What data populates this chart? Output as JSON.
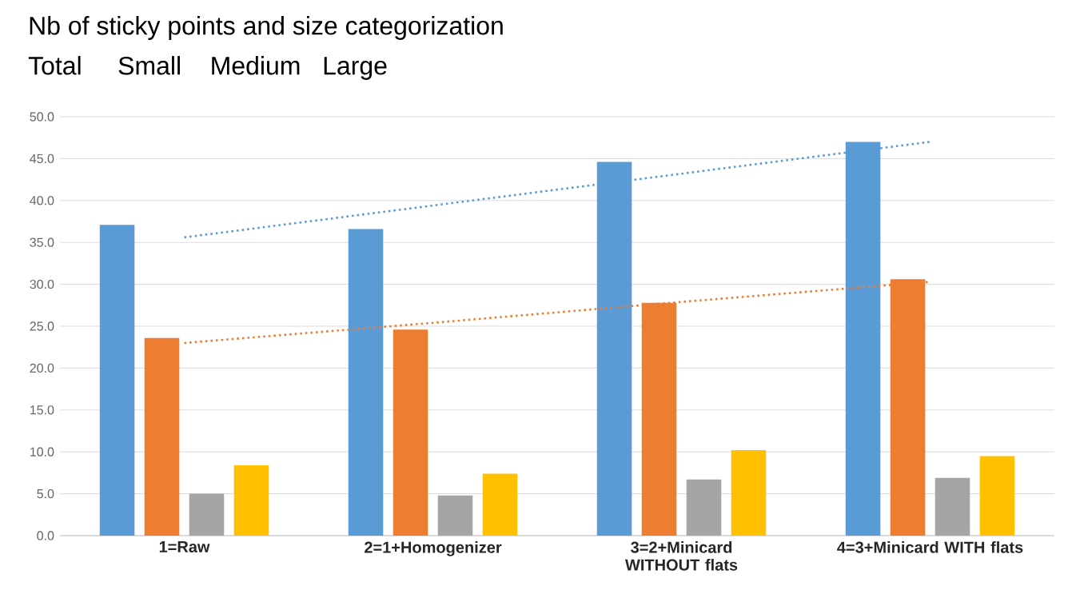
{
  "chart_data": {
    "type": "bar",
    "title": "Nb of sticky points and size categorization",
    "subtitle": "Total     Small    Medium   Large",
    "categories": [
      "1=Raw",
      "2=1+Homogenizer",
      "3=2+Minicard WITHOUT flats",
      "4=3+Minicard WITH flats"
    ],
    "series": [
      {
        "color": "#5b9bd5",
        "values": [
          37.1,
          36.6,
          44.6,
          47.0
        ]
      },
      {
        "color": "#ed7d31",
        "values": [
          23.6,
          24.6,
          27.8,
          30.6
        ]
      },
      {
        "color": "#a5a5a5",
        "values": [
          5.0,
          4.8,
          6.7,
          6.9
        ]
      },
      {
        "color": "#ffc000",
        "values": [
          8.4,
          7.4,
          10.2,
          9.5
        ]
      },
      {
        "type": "line",
        "line_style": "dotted",
        "color": "#5b9bd5",
        "values": [
          35.6,
          39.4,
          43.2,
          47.0
        ]
      },
      {
        "type": "line",
        "line_style": "dotted",
        "color": "#ed7d31",
        "values": [
          23.0,
          25.4,
          27.9,
          30.3
        ]
      }
    ],
    "ylim": [
      0,
      50
    ],
    "yticks": [
      {
        "value": 0,
        "label": "0.0"
      },
      {
        "value": 5,
        "label": "5.0"
      },
      {
        "value": 10,
        "label": "10.0"
      },
      {
        "value": 15,
        "label": "15.0"
      },
      {
        "value": 20,
        "label": "20.0"
      },
      {
        "value": 25,
        "label": "25.0"
      },
      {
        "value": 30,
        "label": "30.0"
      },
      {
        "value": 35,
        "label": "35.0"
      },
      {
        "value": 40,
        "label": "40.0"
      },
      {
        "value": 45,
        "label": "45.0"
      },
      {
        "value": 50,
        "label": "50.0"
      }
    ],
    "grid": "y"
  }
}
